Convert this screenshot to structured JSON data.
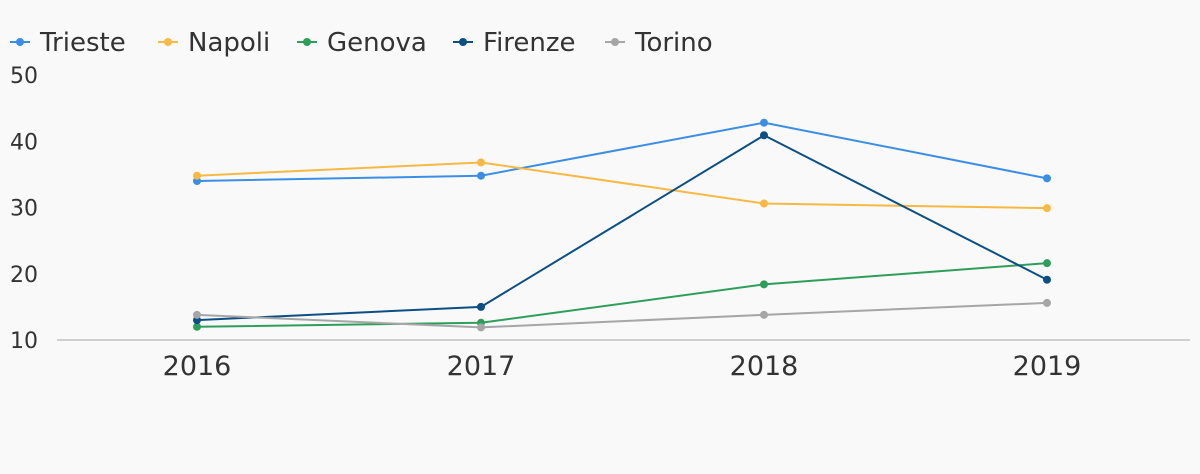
{
  "chart_data": {
    "type": "line",
    "categories": [
      "2016",
      "2017",
      "2018",
      "2019"
    ],
    "series": [
      {
        "name": "Trieste",
        "color": "#3b8ee6",
        "values": [
          34.0,
          34.8,
          42.8,
          34.4
        ]
      },
      {
        "name": "Napoli",
        "color": "#f7b943",
        "values": [
          34.8,
          36.8,
          30.6,
          29.9
        ]
      },
      {
        "name": "Genova",
        "color": "#2e9f5a",
        "values": [
          12.0,
          12.6,
          18.4,
          21.6
        ]
      },
      {
        "name": "Firenze",
        "color": "#0b4f85",
        "values": [
          13.0,
          15.0,
          40.9,
          19.1
        ]
      },
      {
        "name": "Torino",
        "color": "#a6a6a6",
        "values": [
          13.8,
          11.9,
          13.8,
          15.6
        ]
      }
    ],
    "yticks": [
      10,
      20,
      30,
      40,
      50
    ],
    "ylim": [
      10,
      50
    ],
    "grid": false,
    "legend_position": "top-left",
    "title": "",
    "xlabel": "",
    "ylabel": ""
  }
}
